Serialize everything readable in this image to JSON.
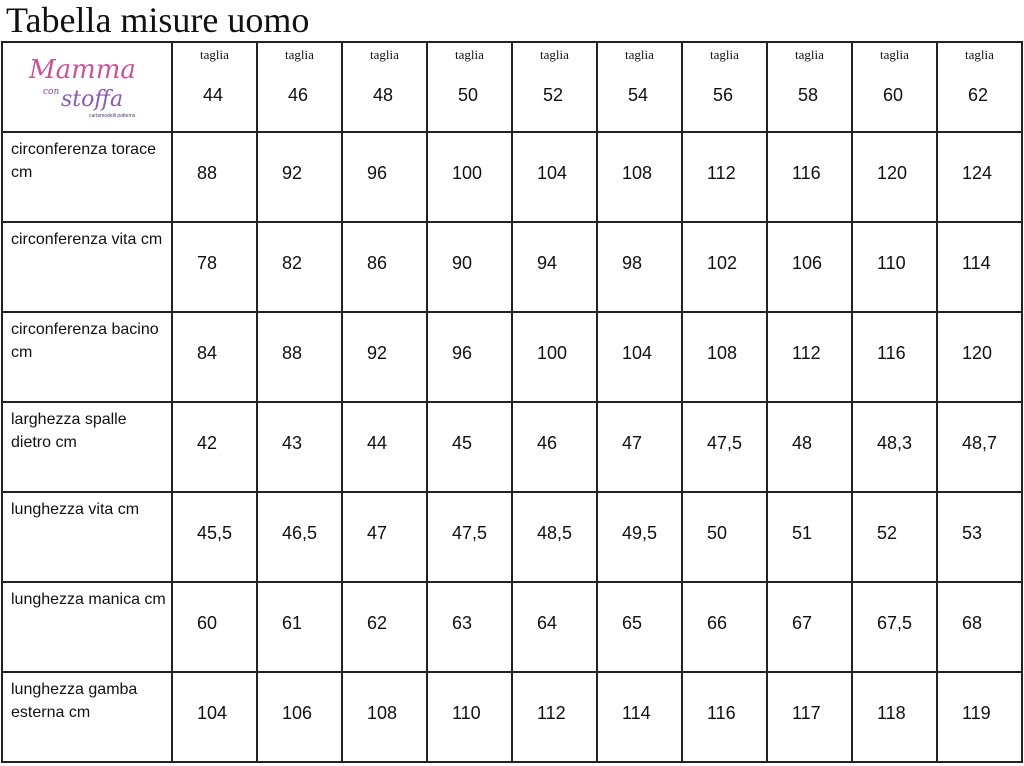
{
  "title": "Tabella misure uomo",
  "logo": {
    "line1": "Mamma",
    "line2": "con",
    "line3": "stoffa",
    "tagline": "cartamodelli patterns"
  },
  "header_label": "taglia",
  "sizes": [
    "44",
    "46",
    "48",
    "50",
    "52",
    "54",
    "56",
    "58",
    "60",
    "62"
  ],
  "rows": [
    {
      "label": "circonferenza torace  cm",
      "values": [
        "88",
        "92",
        "96",
        "100",
        "104",
        "108",
        "112",
        "116",
        "120",
        "124"
      ]
    },
    {
      "label": "circonferenza vita cm",
      "values": [
        "78",
        "82",
        "86",
        "90",
        "94",
        "98",
        "102",
        "106",
        "110",
        "114"
      ]
    },
    {
      "label": "circonferenza bacino cm",
      "values": [
        "84",
        "88",
        "92",
        "96",
        "100",
        "104",
        "108",
        "112",
        "116",
        "120"
      ]
    },
    {
      "label": "larghezza spalle dietro  cm",
      "values": [
        "42",
        "43",
        "44",
        "45",
        "46",
        "47",
        "47,5",
        "48",
        "48,3",
        "48,7"
      ]
    },
    {
      "label": "lunghezza vita cm",
      "values": [
        "45,5",
        "46,5",
        "47",
        "47,5",
        "48,5",
        "49,5",
        "50",
        "51",
        "52",
        "53"
      ]
    },
    {
      "label": "lunghezza manica  cm",
      "values": [
        "60",
        "61",
        "62",
        "63",
        "64",
        "65",
        "66",
        "67",
        "67,5",
        "68"
      ]
    },
    {
      "label": "lunghezza gamba esterna cm",
      "values": [
        "104",
        "106",
        "108",
        "110",
        "112",
        "114",
        "116",
        "117",
        "118",
        "119"
      ]
    }
  ]
}
